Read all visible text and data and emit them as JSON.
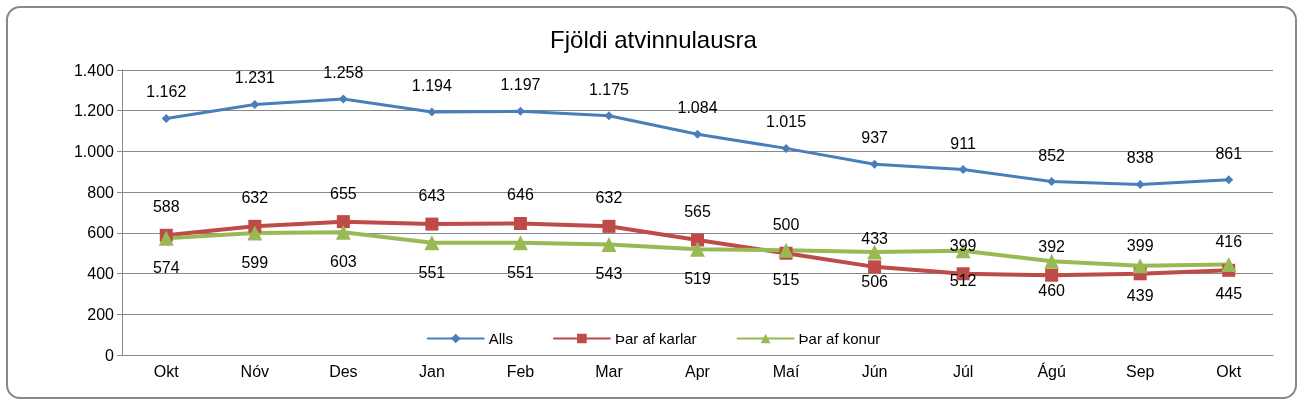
{
  "chart_data": {
    "type": "line",
    "title": "Fjöldi atvinnulausra",
    "categories": [
      "Okt",
      "Nóv",
      "Des",
      "Jan",
      "Feb",
      "Mar",
      "Apr",
      "Maí",
      "Jún",
      "Júl",
      "Ágú",
      "Sep",
      "Okt"
    ],
    "series": [
      {
        "name": "Alls",
        "color": "#4a7ebb",
        "marker": "diamond",
        "values": [
          1162,
          1231,
          1258,
          1194,
          1197,
          1175,
          1084,
          1015,
          937,
          911,
          852,
          838,
          861
        ],
        "value_labels": [
          "1.162",
          "1.231",
          "1.258",
          "1.194",
          "1.197",
          "1.175",
          "1.084",
          "1.015",
          "937",
          "911",
          "852",
          "838",
          "861"
        ]
      },
      {
        "name": "Þar af karlar",
        "color": "#be4b48",
        "marker": "square",
        "values": [
          588,
          632,
          655,
          643,
          646,
          632,
          565,
          500,
          433,
          399,
          392,
          399,
          416
        ],
        "value_labels": [
          "588",
          "632",
          "655",
          "643",
          "646",
          "632",
          "565",
          "500",
          "433",
          "399",
          "392",
          "399",
          "416"
        ]
      },
      {
        "name": "Þar af konur",
        "color": "#98b954",
        "marker": "triangle",
        "values": [
          574,
          599,
          603,
          551,
          551,
          543,
          519,
          515,
          506,
          512,
          460,
          439,
          445
        ],
        "value_labels": [
          "574",
          "599",
          "603",
          "551",
          "551",
          "543",
          "519",
          "515",
          "506",
          "512",
          "460",
          "439",
          "445"
        ]
      }
    ],
    "ylim": [
      0,
      1400
    ],
    "yticks": [
      0,
      200,
      400,
      600,
      800,
      {
        "value": 1000,
        "label": "1.000"
      },
      {
        "value": 1200,
        "label": "1.200"
      },
      {
        "value": 1400,
        "label": "1.400"
      }
    ],
    "grid": "y",
    "legend": "bottom",
    "line_style": "solid"
  }
}
